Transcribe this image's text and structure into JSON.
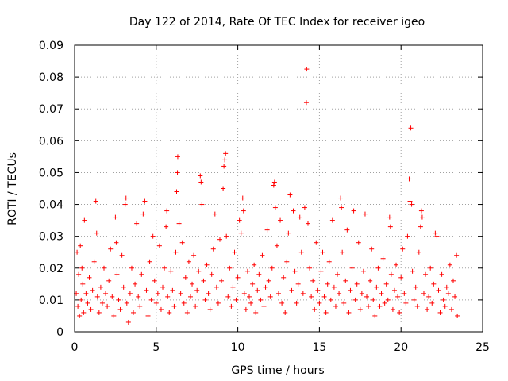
{
  "chart_data": {
    "type": "scatter",
    "title": "Day 122 of 2014, Rate Of TEC Index for receiver igeo",
    "xlabel": "GPS time / hours",
    "ylabel": "ROTI / TECUs",
    "xlim": [
      0,
      25
    ],
    "ylim": [
      0,
      0.09
    ],
    "x_ticks": [
      "0",
      "5",
      "10",
      "15",
      "20",
      "25"
    ],
    "y_ticks": [
      "0",
      "0.01",
      "0.02",
      "0.03",
      "0.04",
      "0.05",
      "0.06",
      "0.07",
      "0.08",
      "0.09"
    ],
    "grid": true,
    "marker": "+",
    "color": "#ff0000",
    "series": [
      {
        "points": [
          [
            0.1,
            0.012
          ],
          [
            0.15,
            0.025
          ],
          [
            0.2,
            0.008
          ],
          [
            0.25,
            0.018
          ],
          [
            0.3,
            0.005
          ],
          [
            0.35,
            0.027
          ],
          [
            0.4,
            0.01
          ],
          [
            0.45,
            0.02
          ],
          [
            0.5,
            0.015
          ],
          [
            0.55,
            0.006
          ],
          [
            0.6,
            0.035
          ],
          [
            0.7,
            0.012
          ],
          [
            0.8,
            0.009
          ],
          [
            0.9,
            0.017
          ],
          [
            1.0,
            0.007
          ],
          [
            1.1,
            0.013
          ],
          [
            1.2,
            0.022
          ],
          [
            1.3,
            0.041
          ],
          [
            1.35,
            0.031
          ],
          [
            1.4,
            0.011
          ],
          [
            1.5,
            0.006
          ],
          [
            1.6,
            0.014
          ],
          [
            1.7,
            0.009
          ],
          [
            1.8,
            0.02
          ],
          [
            1.9,
            0.012
          ],
          [
            2.0,
            0.008
          ],
          [
            2.1,
            0.016
          ],
          [
            2.2,
            0.026
          ],
          [
            2.3,
            0.011
          ],
          [
            2.4,
            0.005
          ],
          [
            2.5,
            0.036
          ],
          [
            2.55,
            0.028
          ],
          [
            2.6,
            0.018
          ],
          [
            2.7,
            0.01
          ],
          [
            2.8,
            0.007
          ],
          [
            2.9,
            0.024
          ],
          [
            3.0,
            0.014
          ],
          [
            3.1,
            0.04
          ],
          [
            3.15,
            0.042
          ],
          [
            3.2,
            0.009
          ],
          [
            3.3,
            0.003
          ],
          [
            3.4,
            0.012
          ],
          [
            3.5,
            0.02
          ],
          [
            3.6,
            0.006
          ],
          [
            3.7,
            0.015
          ],
          [
            3.8,
            0.034
          ],
          [
            3.9,
            0.011
          ],
          [
            4.0,
            0.008
          ],
          [
            4.1,
            0.018
          ],
          [
            4.2,
            0.037
          ],
          [
            4.3,
            0.041
          ],
          [
            4.4,
            0.013
          ],
          [
            4.5,
            0.005
          ],
          [
            4.6,
            0.022
          ],
          [
            4.7,
            0.01
          ],
          [
            4.8,
            0.03
          ],
          [
            4.9,
            0.016
          ],
          [
            5.0,
            0.009
          ],
          [
            5.1,
            0.012
          ],
          [
            5.2,
            0.027
          ],
          [
            5.3,
            0.007
          ],
          [
            5.4,
            0.014
          ],
          [
            5.5,
            0.02
          ],
          [
            5.6,
            0.033
          ],
          [
            5.65,
            0.038
          ],
          [
            5.7,
            0.011
          ],
          [
            5.8,
            0.006
          ],
          [
            5.9,
            0.019
          ],
          [
            6.0,
            0.013
          ],
          [
            6.1,
            0.008
          ],
          [
            6.2,
            0.025
          ],
          [
            6.25,
            0.044
          ],
          [
            6.3,
            0.05
          ],
          [
            6.32,
            0.055
          ],
          [
            6.4,
            0.034
          ],
          [
            6.5,
            0.012
          ],
          [
            6.6,
            0.028
          ],
          [
            6.7,
            0.009
          ],
          [
            6.8,
            0.017
          ],
          [
            6.9,
            0.006
          ],
          [
            7.0,
            0.022
          ],
          [
            7.1,
            0.011
          ],
          [
            7.2,
            0.015
          ],
          [
            7.3,
            0.024
          ],
          [
            7.4,
            0.008
          ],
          [
            7.5,
            0.013
          ],
          [
            7.6,
            0.019
          ],
          [
            7.7,
            0.049
          ],
          [
            7.75,
            0.047
          ],
          [
            7.8,
            0.04
          ],
          [
            7.9,
            0.016
          ],
          [
            8.0,
            0.01
          ],
          [
            8.1,
            0.021
          ],
          [
            8.2,
            0.012
          ],
          [
            8.3,
            0.007
          ],
          [
            8.4,
            0.018
          ],
          [
            8.5,
            0.026
          ],
          [
            8.6,
            0.037
          ],
          [
            8.7,
            0.014
          ],
          [
            8.8,
            0.009
          ],
          [
            8.9,
            0.029
          ],
          [
            9.0,
            0.016
          ],
          [
            9.1,
            0.045
          ],
          [
            9.15,
            0.052
          ],
          [
            9.2,
            0.054
          ],
          [
            9.25,
            0.056
          ],
          [
            9.3,
            0.03
          ],
          [
            9.4,
            0.011
          ],
          [
            9.5,
            0.02
          ],
          [
            9.6,
            0.008
          ],
          [
            9.7,
            0.014
          ],
          [
            9.8,
            0.025
          ],
          [
            9.9,
            0.01
          ],
          [
            10.0,
            0.017
          ],
          [
            10.1,
            0.035
          ],
          [
            10.2,
            0.031
          ],
          [
            10.3,
            0.042
          ],
          [
            10.35,
            0.038
          ],
          [
            10.4,
            0.012
          ],
          [
            10.5,
            0.007
          ],
          [
            10.6,
            0.019
          ],
          [
            10.7,
            0.011
          ],
          [
            10.8,
            0.009
          ],
          [
            10.9,
            0.015
          ],
          [
            11.0,
            0.021
          ],
          [
            11.1,
            0.006
          ],
          [
            11.2,
            0.013
          ],
          [
            11.3,
            0.018
          ],
          [
            11.4,
            0.01
          ],
          [
            11.5,
            0.024
          ],
          [
            11.6,
            0.008
          ],
          [
            11.7,
            0.014
          ],
          [
            11.8,
            0.032
          ],
          [
            11.9,
            0.016
          ],
          [
            12.0,
            0.011
          ],
          [
            12.1,
            0.02
          ],
          [
            12.2,
            0.046
          ],
          [
            12.25,
            0.047
          ],
          [
            12.3,
            0.039
          ],
          [
            12.4,
            0.027
          ],
          [
            12.5,
            0.012
          ],
          [
            12.6,
            0.035
          ],
          [
            12.7,
            0.009
          ],
          [
            12.8,
            0.017
          ],
          [
            12.9,
            0.006
          ],
          [
            13.0,
            0.022
          ],
          [
            13.1,
            0.031
          ],
          [
            13.2,
            0.043
          ],
          [
            13.3,
            0.013
          ],
          [
            13.4,
            0.038
          ],
          [
            13.5,
            0.019
          ],
          [
            13.6,
            0.009
          ],
          [
            13.7,
            0.015
          ],
          [
            13.8,
            0.036
          ],
          [
            13.9,
            0.025
          ],
          [
            14.0,
            0.012
          ],
          [
            14.1,
            0.039
          ],
          [
            14.2,
            0.072
          ],
          [
            14.22,
            0.0825
          ],
          [
            14.3,
            0.034
          ],
          [
            14.4,
            0.02
          ],
          [
            14.5,
            0.011
          ],
          [
            14.6,
            0.016
          ],
          [
            14.7,
            0.007
          ],
          [
            14.8,
            0.028
          ],
          [
            14.9,
            0.013
          ],
          [
            15.0,
            0.009
          ],
          [
            15.1,
            0.019
          ],
          [
            15.2,
            0.025
          ],
          [
            15.3,
            0.011
          ],
          [
            15.4,
            0.006
          ],
          [
            15.5,
            0.015
          ],
          [
            15.6,
            0.022
          ],
          [
            15.7,
            0.01
          ],
          [
            15.8,
            0.035
          ],
          [
            15.9,
            0.014
          ],
          [
            16.0,
            0.008
          ],
          [
            16.1,
            0.018
          ],
          [
            16.2,
            0.012
          ],
          [
            16.3,
            0.042
          ],
          [
            16.35,
            0.039
          ],
          [
            16.4,
            0.025
          ],
          [
            16.5,
            0.009
          ],
          [
            16.6,
            0.016
          ],
          [
            16.7,
            0.032
          ],
          [
            16.8,
            0.006
          ],
          [
            16.9,
            0.013
          ],
          [
            17.0,
            0.02
          ],
          [
            17.1,
            0.038
          ],
          [
            17.2,
            0.01
          ],
          [
            17.3,
            0.015
          ],
          [
            17.4,
            0.028
          ],
          [
            17.5,
            0.007
          ],
          [
            17.6,
            0.012
          ],
          [
            17.7,
            0.019
          ],
          [
            17.8,
            0.037
          ],
          [
            17.9,
            0.011
          ],
          [
            18.0,
            0.008
          ],
          [
            18.1,
            0.016
          ],
          [
            18.2,
            0.026
          ],
          [
            18.3,
            0.01
          ],
          [
            18.4,
            0.005
          ],
          [
            18.5,
            0.014
          ],
          [
            18.6,
            0.02
          ],
          [
            18.7,
            0.008
          ],
          [
            18.8,
            0.012
          ],
          [
            18.9,
            0.023
          ],
          [
            19.0,
            0.009
          ],
          [
            19.1,
            0.015
          ],
          [
            19.2,
            0.01
          ],
          [
            19.3,
            0.036
          ],
          [
            19.35,
            0.033
          ],
          [
            19.4,
            0.018
          ],
          [
            19.5,
            0.007
          ],
          [
            19.6,
            0.013
          ],
          [
            19.7,
            0.021
          ],
          [
            19.8,
            0.011
          ],
          [
            19.9,
            0.006
          ],
          [
            20.0,
            0.017
          ],
          [
            20.1,
            0.026
          ],
          [
            20.2,
            0.012
          ],
          [
            20.3,
            0.009
          ],
          [
            20.4,
            0.03
          ],
          [
            20.5,
            0.048
          ],
          [
            20.55,
            0.041
          ],
          [
            20.6,
            0.064
          ],
          [
            20.65,
            0.04
          ],
          [
            20.7,
            0.019
          ],
          [
            20.8,
            0.01
          ],
          [
            20.9,
            0.014
          ],
          [
            21.0,
            0.008
          ],
          [
            21.1,
            0.025
          ],
          [
            21.2,
            0.033
          ],
          [
            21.25,
            0.038
          ],
          [
            21.3,
            0.036
          ],
          [
            21.4,
            0.012
          ],
          [
            21.5,
            0.018
          ],
          [
            21.6,
            0.007
          ],
          [
            21.7,
            0.011
          ],
          [
            21.8,
            0.02
          ],
          [
            21.9,
            0.009
          ],
          [
            22.0,
            0.015
          ],
          [
            22.1,
            0.031
          ],
          [
            22.2,
            0.03
          ],
          [
            22.3,
            0.013
          ],
          [
            22.4,
            0.006
          ],
          [
            22.5,
            0.018
          ],
          [
            22.6,
            0.01
          ],
          [
            22.7,
            0.008
          ],
          [
            22.8,
            0.014
          ],
          [
            22.9,
            0.012
          ],
          [
            23.0,
            0.021
          ],
          [
            23.1,
            0.007
          ],
          [
            23.2,
            0.016
          ],
          [
            23.3,
            0.011
          ],
          [
            23.4,
            0.024
          ],
          [
            23.45,
            0.005
          ]
        ]
      }
    ]
  }
}
